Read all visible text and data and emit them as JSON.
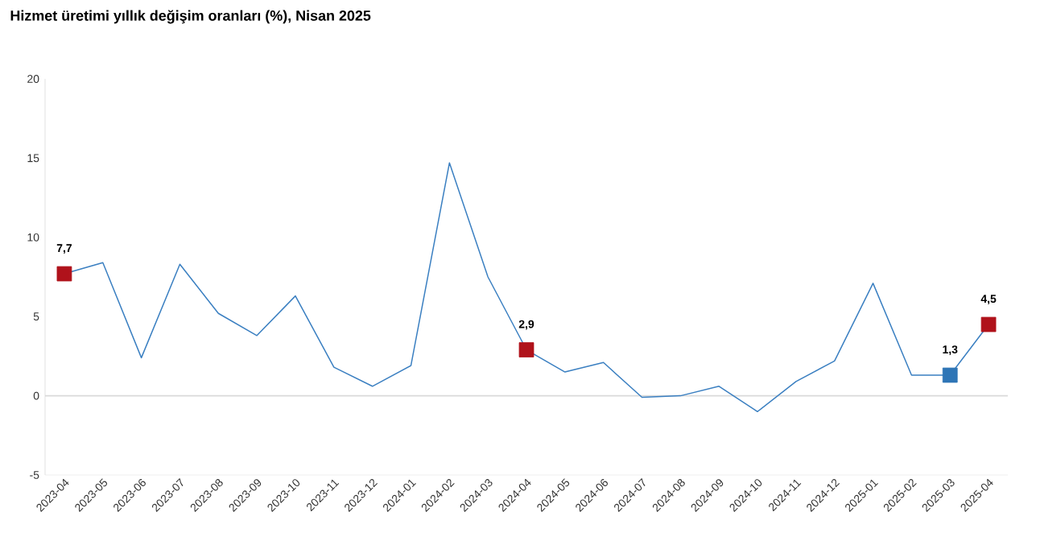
{
  "chart_data": {
    "type": "line",
    "title": "Hizmet üretimi yıllık değişim oranları (%), Nisan 2025",
    "categories": [
      "2023-04",
      "2023-05",
      "2023-06",
      "2023-07",
      "2023-08",
      "2023-09",
      "2023-10",
      "2023-11",
      "2023-12",
      "2024-01",
      "2024-02",
      "2024-03",
      "2024-04",
      "2024-05",
      "2024-06",
      "2024-07",
      "2024-08",
      "2024-09",
      "2024-10",
      "2024-11",
      "2024-12",
      "2025-01",
      "2025-02",
      "2025-03",
      "2025-04"
    ],
    "series": [
      {
        "color": "#3a7fc1",
        "marker": "none",
        "values": [
          7.7,
          8.4,
          2.4,
          8.3,
          5.2,
          3.8,
          6.3,
          1.8,
          0.6,
          1.9,
          14.7,
          7.5,
          2.9,
          1.5,
          2.1,
          -0.1,
          0.0,
          0.6,
          -1.0,
          0.9,
          2.2,
          7.1,
          1.3,
          1.3,
          4.5
        ]
      },
      {
        "type": "scatter",
        "marker": "square",
        "values": [
          7.7,
          null,
          null,
          null,
          null,
          null,
          null,
          null,
          null,
          null,
          null,
          null,
          2.9,
          null,
          null,
          null,
          null,
          null,
          null,
          null,
          null,
          null,
          null,
          1.3,
          4.5
        ],
        "colors": [
          "#b0121b",
          null,
          null,
          null,
          null,
          null,
          null,
          null,
          null,
          null,
          null,
          null,
          "#b0121b",
          null,
          null,
          null,
          null,
          null,
          null,
          null,
          null,
          null,
          null,
          "#2e75b6",
          "#b0121b"
        ],
        "value_labels": [
          "7,7",
          null,
          null,
          null,
          null,
          null,
          null,
          null,
          null,
          null,
          null,
          null,
          "2,9",
          null,
          null,
          null,
          null,
          null,
          null,
          null,
          null,
          null,
          null,
          "1,3",
          "4,5"
        ]
      }
    ],
    "ylim": [
      -5,
      20
    ],
    "yticks": [
      -5,
      0,
      5,
      10,
      15,
      20
    ],
    "ref_lines": [
      {
        "axis": "y",
        "value": 0,
        "color": "#d9d9d9"
      }
    ]
  }
}
